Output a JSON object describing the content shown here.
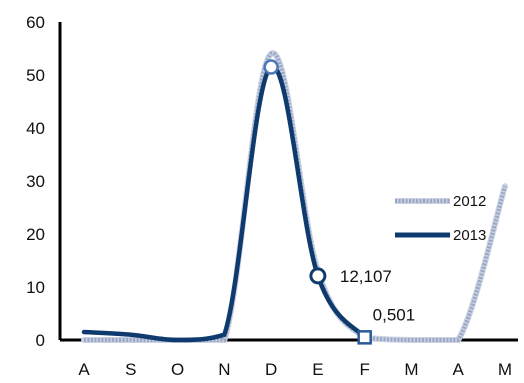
{
  "chart_data": {
    "type": "line",
    "title": "",
    "xlabel": "",
    "ylabel": "",
    "categories": [
      "A",
      "S",
      "O",
      "N",
      "D",
      "E",
      "F",
      "M",
      "A",
      "M"
    ],
    "yticks": [
      0,
      10,
      20,
      30,
      40,
      50,
      60
    ],
    "ylim": [
      0,
      60
    ],
    "grid": false,
    "legend_position": "right",
    "series": [
      {
        "name": "2012",
        "color": "#9aa8c6",
        "style": "light-patterned",
        "values": [
          0,
          0,
          0,
          0,
          54,
          13,
          0.5,
          0,
          0,
          29
        ]
      },
      {
        "name": "2013",
        "color": "#0f3a6e",
        "style": "solid-dark",
        "values": [
          1.5,
          1,
          0,
          1,
          51.5,
          12.107,
          0.501,
          null,
          null,
          null
        ]
      }
    ],
    "annotations": [
      {
        "category_index": 5,
        "value": 12.107,
        "label": "12,107",
        "marker": "circle"
      },
      {
        "category_index": 6,
        "value": 0.501,
        "label": "0,501",
        "marker": "square"
      },
      {
        "category_index": 4,
        "value": 51.5,
        "label": "",
        "marker": "circle-open"
      }
    ]
  }
}
